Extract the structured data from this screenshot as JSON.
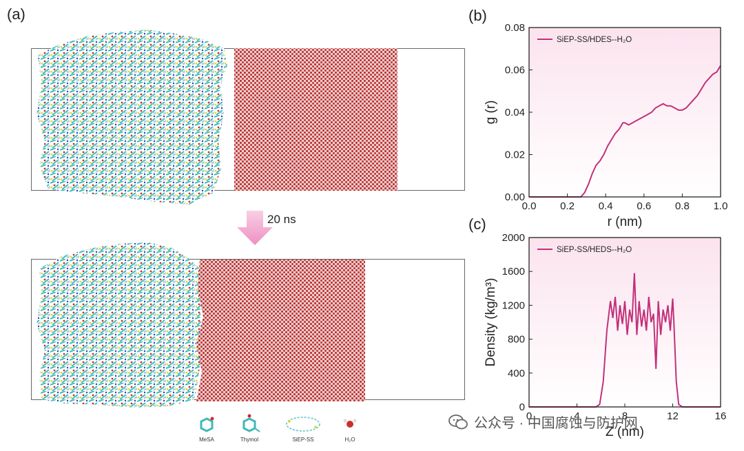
{
  "panels": {
    "a": "(a)",
    "b": "(b)",
    "c": "(c)"
  },
  "arrow_text": "20 ns",
  "legend_labels": [
    "MeSA",
    "Thymol",
    "SiEP-SS",
    "H₂O"
  ],
  "watermark": "公众号 · 中国腐蚀与防护网",
  "colors": {
    "line": "#c2307a",
    "bg_top": "#fbe3ee",
    "bg_bottom": "#ffffff",
    "water": "#c8302f",
    "cyan": "#3fb8b8",
    "arrow": "#f3a8cf"
  },
  "chart_data": [
    {
      "type": "line",
      "panel": "b",
      "ylabel": "g (r)",
      "xlabel": "r (nm)",
      "xlim": [
        0,
        1.0
      ],
      "ylim": [
        0,
        0.08
      ],
      "xticks": [
        "0.0",
        "0.2",
        "0.4",
        "0.6",
        "0.8",
        "1.0"
      ],
      "yticks": [
        "0.00",
        "0.02",
        "0.04",
        "0.06",
        "0.08"
      ],
      "legend": "top-left",
      "series": [
        {
          "name": "SiEP-SS/HDES--H₂O",
          "x": [
            0.0,
            0.1,
            0.2,
            0.27,
            0.29,
            0.31,
            0.33,
            0.35,
            0.37,
            0.39,
            0.41,
            0.43,
            0.45,
            0.47,
            0.49,
            0.5,
            0.52,
            0.54,
            0.56,
            0.58,
            0.6,
            0.62,
            0.64,
            0.66,
            0.68,
            0.7,
            0.72,
            0.74,
            0.76,
            0.78,
            0.8,
            0.82,
            0.84,
            0.86,
            0.88,
            0.9,
            0.92,
            0.94,
            0.96,
            0.98,
            1.0
          ],
          "y": [
            0.0,
            0.0,
            0.0,
            0.0,
            0.002,
            0.006,
            0.011,
            0.015,
            0.017,
            0.02,
            0.024,
            0.027,
            0.03,
            0.032,
            0.035,
            0.035,
            0.034,
            0.035,
            0.036,
            0.037,
            0.038,
            0.039,
            0.04,
            0.042,
            0.043,
            0.044,
            0.043,
            0.043,
            0.042,
            0.041,
            0.041,
            0.042,
            0.044,
            0.046,
            0.048,
            0.051,
            0.054,
            0.056,
            0.058,
            0.059,
            0.062
          ]
        }
      ]
    },
    {
      "type": "line",
      "panel": "c",
      "ylabel": "Density (kg/m³)",
      "xlabel": "Z (nm)",
      "xlim": [
        0,
        16
      ],
      "ylim": [
        0,
        2000
      ],
      "xticks": [
        "0",
        "4",
        "8",
        "12",
        "16"
      ],
      "yticks": [
        "0",
        "400",
        "800",
        "1200",
        "1600",
        "2000"
      ],
      "legend": "top-left",
      "series": [
        {
          "name": "SiEP-SS/HEDS--H₂O",
          "x": [
            0,
            4,
            5.6,
            5.9,
            6.2,
            6.5,
            6.8,
            7.0,
            7.2,
            7.4,
            7.6,
            7.8,
            8.0,
            8.2,
            8.4,
            8.6,
            8.8,
            9.0,
            9.2,
            9.4,
            9.6,
            9.8,
            10.0,
            10.2,
            10.4,
            10.6,
            10.8,
            11.0,
            11.2,
            11.4,
            11.6,
            11.8,
            12.0,
            12.1,
            12.3,
            12.5,
            12.8,
            14,
            16
          ],
          "y": [
            0,
            0,
            0,
            30,
            300,
            900,
            1250,
            1050,
            1300,
            900,
            1200,
            980,
            1250,
            850,
            1150,
            1000,
            1580,
            850,
            1250,
            950,
            1150,
            900,
            1300,
            1000,
            1100,
            450,
            1250,
            850,
            1150,
            1000,
            1200,
            900,
            1280,
            1000,
            300,
            30,
            0,
            0,
            0
          ]
        }
      ]
    }
  ]
}
